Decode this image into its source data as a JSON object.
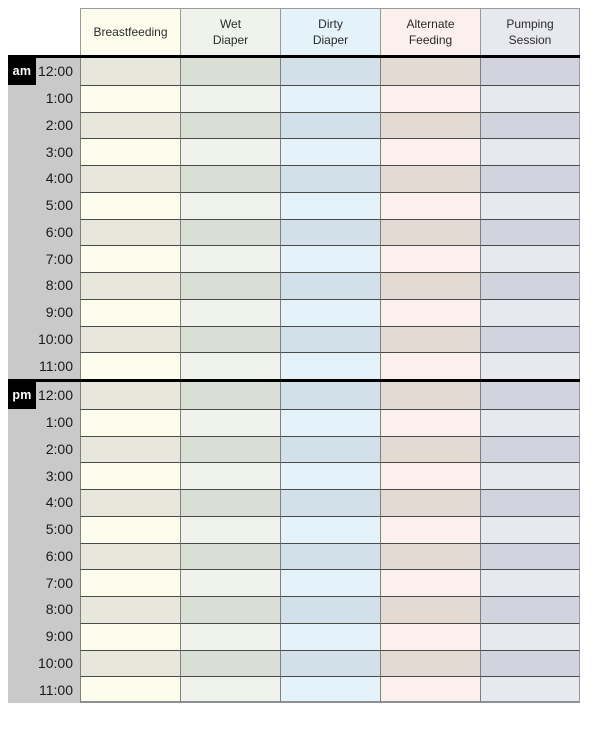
{
  "page": {
    "background": "#ffffff"
  },
  "table": {
    "columns": [
      {
        "id": "breastfeeding",
        "label": "Breastfeeding",
        "label_lines": [
          "Breastfeeding"
        ],
        "header_bg": "#fdfdee",
        "row_light": "#fdfdee",
        "row_dark": "#e8e7dc"
      },
      {
        "id": "wet-diaper",
        "label": "Wet Diaper",
        "label_lines": [
          "Wet",
          "Diaper"
        ],
        "header_bg": "#eff3eb",
        "row_light": "#eff3eb",
        "row_dark": "#d9dfd5"
      },
      {
        "id": "dirty-diaper",
        "label": "Dirty Diaper",
        "label_lines": [
          "Dirty",
          "Diaper"
        ],
        "header_bg": "#e4f2fa",
        "row_light": "#e4f2fa",
        "row_dark": "#d1e0e9"
      },
      {
        "id": "alternate-feeding",
        "label": "Alternate Feeding",
        "label_lines": [
          "Alternate",
          "Feeding"
        ],
        "header_bg": "#fbf0eb",
        "row_light": "#fbf0eb",
        "row_dark": "#e4dad4"
      },
      {
        "id": "pumping-session",
        "label": "Pumping Session",
        "label_lines": [
          "Pumping",
          "Session"
        ],
        "header_bg": "#e8e8f1",
        "row_light": "#e8e8f1",
        "row_dark": "#d2d3de"
      }
    ],
    "times": [
      "12:00",
      "1:00",
      "2:00",
      "3:00",
      "4:00",
      "5:00",
      "6:00",
      "7:00",
      "8:00",
      "9:00",
      "10:00",
      "11:00"
    ],
    "sections": [
      {
        "meridiem": "am"
      },
      {
        "meridiem": "pm"
      }
    ],
    "cell_value": "",
    "colors": {
      "time_rail_bg": "#c9c9c9",
      "meridiem_badge_bg": "#000000",
      "meridiem_badge_text": "#ffffff",
      "section_divider": "#000000",
      "row_line": "#4a4a4a",
      "column_line": "#808080",
      "header_border": "#9a9a9a",
      "time_text": "#1a1a1a",
      "header_text": "#2b2b2b"
    }
  }
}
